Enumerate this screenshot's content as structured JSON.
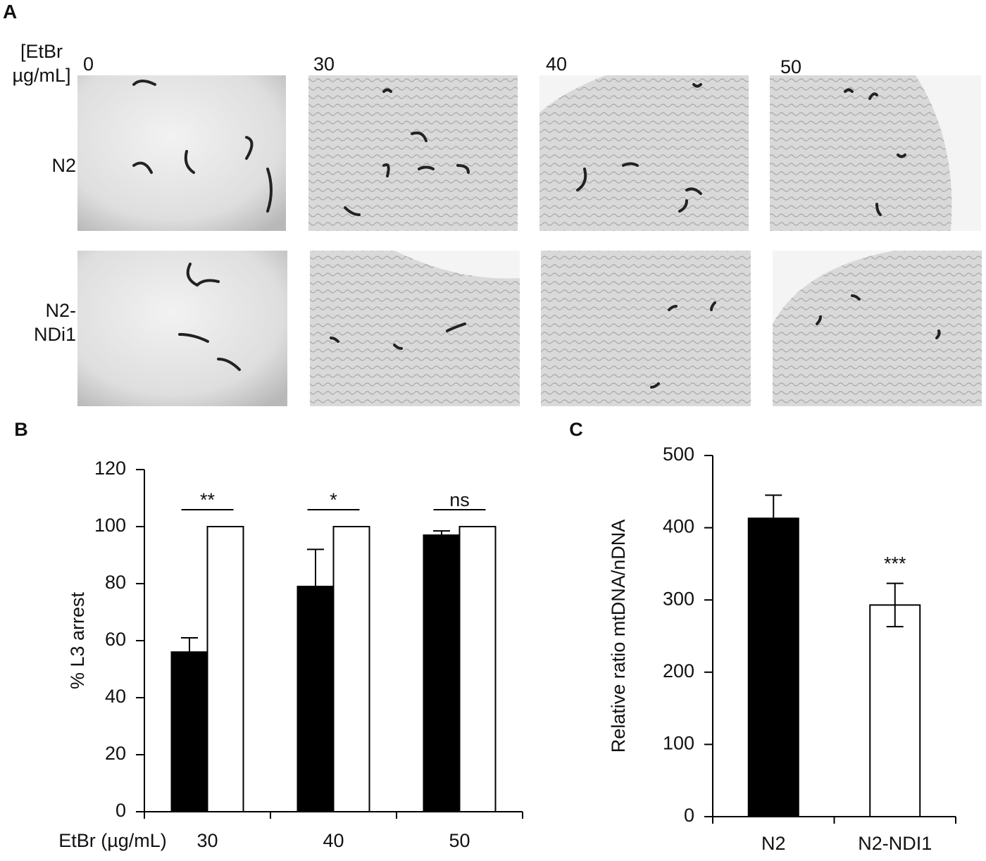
{
  "panel_a": {
    "label": "A",
    "header": "[EtBr µg/mL]",
    "columns": [
      "0",
      "30",
      "40",
      "50"
    ],
    "rows": [
      "N2",
      "N2-NDi1"
    ]
  },
  "chart_data": [
    {
      "type": "bar",
      "title": "B",
      "ylabel": "% L3 arrest",
      "xlabel": "EtBr (µg/mL)",
      "categories": [
        "30",
        "40",
        "50"
      ],
      "series": [
        {
          "color": "#000000",
          "values": [
            56,
            79,
            97
          ],
          "errors": [
            5,
            13,
            1.5
          ]
        },
        {
          "color": "#ffffff",
          "values": [
            100,
            100,
            100
          ]
        }
      ],
      "annotations": [
        "**",
        "*",
        "ns"
      ],
      "ylim": [
        0,
        120
      ],
      "yticks": [
        0,
        20,
        40,
        60,
        80,
        100,
        120
      ]
    },
    {
      "type": "bar",
      "title": "C",
      "ylabel": "Relative ratio mtDNA/nDNA",
      "categories": [
        "N2",
        "N2-NDI1"
      ],
      "values": [
        413,
        293
      ],
      "errors": [
        32,
        30
      ],
      "colors": [
        "#000000",
        "#ffffff"
      ],
      "annotations": [
        null,
        "***"
      ],
      "ylim": [
        0,
        500
      ],
      "yticks": [
        0,
        100,
        200,
        300,
        400,
        500
      ]
    }
  ]
}
